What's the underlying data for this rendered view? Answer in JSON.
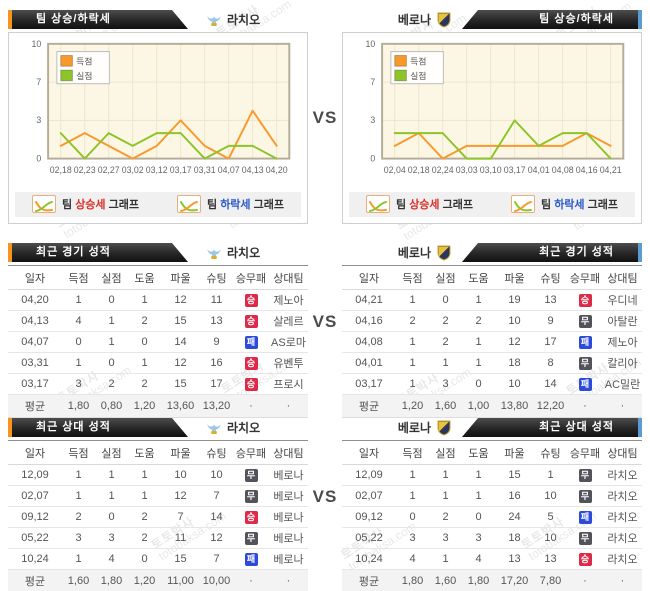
{
  "vs": "VS",
  "watermark": {
    "kr": "토토박사",
    "en": "totobaksa.com"
  },
  "teams": {
    "left": "라치오",
    "right": "베로나"
  },
  "banners": {
    "trend": "팀 상승/하락세",
    "recent": "최근 경기 성적",
    "h2h": "최근 상대 성적"
  },
  "chart_footer": {
    "team_word": "팀",
    "up_word": "상승세",
    "down_word": "하락세",
    "graph_word": "그래프"
  },
  "result_labels": {
    "W": "승",
    "D": "무",
    "L": "패"
  },
  "colors": {
    "accent_orange": "#f7941d",
    "accent_blue": "#5b9bd5",
    "line_scored": "#f8992b",
    "line_conceded": "#8cc42a",
    "win_badge": "#dc2a48",
    "draw_badge": "#53535b",
    "loss_badge": "#2d4bd8"
  },
  "chart_data": [
    {
      "type": "line",
      "team": "라치오",
      "title": "팀 상승/하락세",
      "x": [
        "02,18",
        "02,23",
        "02,27",
        "03,02",
        "03,12",
        "03,17",
        "03,31",
        "04,07",
        "04,13",
        "04,20"
      ],
      "yticks": [
        0,
        3,
        7,
        10
      ],
      "ylim": [
        0,
        10
      ],
      "grid": "on",
      "legend_position": "top-left",
      "series": [
        {
          "name": "득점",
          "color": "#f8992b",
          "values": [
            1,
            2,
            1,
            0,
            1,
            3,
            1,
            0,
            4,
            1
          ]
        },
        {
          "name": "실점",
          "color": "#8cc42a",
          "values": [
            2,
            0,
            2,
            1,
            2,
            2,
            0,
            1,
            1,
            0
          ]
        }
      ]
    },
    {
      "type": "line",
      "team": "베로나",
      "title": "팀 상승/하락세",
      "x": [
        "02,04",
        "02,18",
        "02,24",
        "03,03",
        "03,10",
        "03,17",
        "04,01",
        "04,08",
        "04,16",
        "04,21"
      ],
      "yticks": [
        0,
        3,
        7,
        10
      ],
      "ylim": [
        0,
        10
      ],
      "grid": "on",
      "legend_position": "top-left",
      "series": [
        {
          "name": "득점",
          "color": "#f8992b",
          "values": [
            1,
            2,
            0,
            1,
            1,
            1,
            1,
            1,
            2,
            1
          ]
        },
        {
          "name": "실점",
          "color": "#8cc42a",
          "values": [
            2,
            2,
            2,
            0,
            0,
            3,
            1,
            2,
            2,
            0
          ]
        }
      ]
    }
  ],
  "table_headers": [
    "일자",
    "득점",
    "실점",
    "도움",
    "파울",
    "슈팅",
    "승무패",
    "상대팀"
  ],
  "tables": {
    "recent_left": {
      "rows": [
        [
          "04,20",
          "1",
          "0",
          "1",
          "12",
          "11",
          "W",
          "제노아"
        ],
        [
          "04,13",
          "4",
          "1",
          "2",
          "15",
          "13",
          "W",
          "살레르"
        ],
        [
          "04,07",
          "0",
          "1",
          "0",
          "14",
          "9",
          "L",
          "AS로마"
        ],
        [
          "03,31",
          "1",
          "0",
          "1",
          "12",
          "16",
          "W",
          "유벤투"
        ],
        [
          "03,17",
          "3",
          "2",
          "2",
          "15",
          "17",
          "W",
          "프로시"
        ]
      ],
      "avg": [
        "평균",
        "1,80",
        "0,80",
        "1,20",
        "13,60",
        "13,20",
        "·",
        "·"
      ]
    },
    "recent_right": {
      "rows": [
        [
          "04,21",
          "1",
          "0",
          "1",
          "19",
          "13",
          "W",
          "우디네"
        ],
        [
          "04,16",
          "2",
          "2",
          "2",
          "10",
          "9",
          "D",
          "아탈란"
        ],
        [
          "04,08",
          "1",
          "2",
          "1",
          "12",
          "17",
          "L",
          "제노아"
        ],
        [
          "04,01",
          "1",
          "1",
          "1",
          "18",
          "8",
          "D",
          "칼리아"
        ],
        [
          "03,17",
          "1",
          "3",
          "0",
          "10",
          "14",
          "L",
          "AC밀란"
        ]
      ],
      "avg": [
        "평균",
        "1,20",
        "1,60",
        "1,00",
        "13,80",
        "12,20",
        "·",
        "·"
      ]
    },
    "h2h_left": {
      "rows": [
        [
          "12,09",
          "1",
          "1",
          "1",
          "10",
          "10",
          "D",
          "베로나"
        ],
        [
          "02,07",
          "1",
          "1",
          "1",
          "12",
          "7",
          "D",
          "베로나"
        ],
        [
          "09,12",
          "2",
          "0",
          "2",
          "7",
          "14",
          "W",
          "베로나"
        ],
        [
          "05,22",
          "3",
          "3",
          "2",
          "11",
          "12",
          "D",
          "베로나"
        ],
        [
          "10,24",
          "1",
          "4",
          "0",
          "15",
          "7",
          "L",
          "베로나"
        ]
      ],
      "avg": [
        "평균",
        "1,60",
        "1,80",
        "1,20",
        "11,00",
        "10,00",
        "·",
        "·"
      ]
    },
    "h2h_right": {
      "rows": [
        [
          "12,09",
          "1",
          "1",
          "1",
          "15",
          "1",
          "D",
          "라치오"
        ],
        [
          "02,07",
          "1",
          "1",
          "1",
          "16",
          "10",
          "D",
          "라치오"
        ],
        [
          "09,12",
          "0",
          "2",
          "0",
          "24",
          "5",
          "L",
          "라치오"
        ],
        [
          "05,22",
          "3",
          "3",
          "3",
          "18",
          "10",
          "D",
          "라치오"
        ],
        [
          "10,24",
          "4",
          "1",
          "4",
          "13",
          "13",
          "W",
          "라치오"
        ]
      ],
      "avg": [
        "평균",
        "1,80",
        "1,60",
        "1,80",
        "17,20",
        "7,80",
        "·",
        "·"
      ]
    }
  }
}
